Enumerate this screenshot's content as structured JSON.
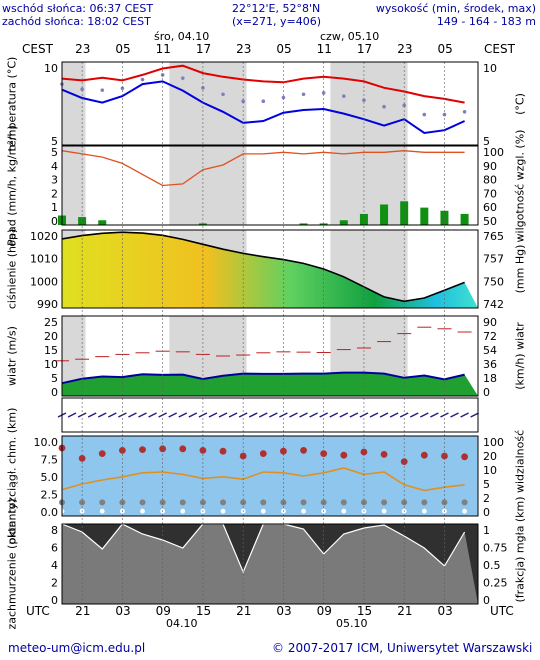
{
  "header": {
    "sunrise": "wschód słońca: 06:37 CEST",
    "sunset": "zachód słońca: 18:02 CEST",
    "coords": "22°12'E, 52°8'N",
    "grid": "(x=271,  y=406)",
    "height_label": "wysokość (min, środek, max)",
    "height_values": "149 - 164 - 183 m"
  },
  "top_axis": {
    "tz_left": "CEST",
    "tz_right": "CEST",
    "hours": [
      "23",
      "05",
      "11",
      "17",
      "23",
      "05",
      "11",
      "17",
      "23",
      "05"
    ],
    "day1": "śro, 04.10",
    "day2": "czw, 05.10"
  },
  "bottom_axis": {
    "tz_left": "UTC",
    "tz_right": "UTC",
    "hours": [
      "21",
      "03",
      "09",
      "15",
      "21",
      "03",
      "09",
      "15",
      "21",
      "03"
    ],
    "day1": "04.10",
    "day2": "05.10"
  },
  "footer": {
    "email": "meteo-um@icm.edu.pl",
    "copyright": "© 2007-2017 ICM, Uniwersytet Warszawski"
  },
  "colors": {
    "temp_line": "#e00000",
    "dew_line": "#0000e0",
    "humidity_line": "#e05020",
    "precip_bar": "#109010",
    "wind_line": "#0000a0",
    "pressure_line": "#000000",
    "night_shade": "#d8d8d8",
    "cloud_bg": "#303030"
  },
  "chart_data": [
    {
      "type": "line",
      "panel": "temperature",
      "ylabel": "temperatura (°C)",
      "ylabel_right": "(°C)",
      "ticks": [
        "10",
        "5"
      ],
      "ticks_right": [
        "10",
        "5"
      ],
      "ylim": [
        3,
        12
      ],
      "x_hours_utc": [
        0,
        3,
        6,
        9,
        12,
        15,
        18,
        21,
        24,
        27,
        30,
        33,
        36,
        39,
        42,
        45,
        48,
        51,
        54,
        57,
        60
      ],
      "series": [
        {
          "values": [
            10.2,
            10.0,
            10.3,
            10.0,
            10.6,
            11.3,
            11.6,
            10.8,
            10.4,
            10.1,
            9.9,
            9.8,
            10.2,
            10.4,
            10.2,
            9.9,
            9.2,
            8.8,
            8.3,
            8.0,
            7.6
          ]
        },
        {
          "values": [
            9.0,
            8.1,
            7.6,
            8.3,
            9.6,
            9.9,
            8.9,
            7.6,
            6.6,
            5.4,
            5.6,
            6.5,
            6.8,
            6.9,
            6.4,
            5.8,
            5.1,
            5.8,
            4.3,
            4.6,
            5.6
          ]
        }
      ]
    },
    {
      "type": "bar",
      "panel": "precipitation_humidity",
      "ylabel": "opad (mm/h, kg/m²/h)",
      "ylabel_right": "wilgotność wzgl. (%)",
      "ticks": [
        "5",
        "4",
        "3",
        "2",
        "1",
        "0"
      ],
      "ticks_right": [
        "100",
        "90",
        "80",
        "70",
        "60",
        "50"
      ],
      "ylim": [
        0,
        5
      ],
      "ylim_right": [
        50,
        100
      ],
      "x_hours_utc": [
        0,
        3,
        6,
        9,
        12,
        15,
        18,
        21,
        24,
        27,
        30,
        33,
        36,
        39,
        42,
        45,
        48,
        51,
        54,
        57,
        60
      ],
      "series": [
        {
          "name_hidden": "precip",
          "values": [
            0.6,
            0.5,
            0.3,
            0.0,
            0.0,
            0.0,
            0.0,
            0.1,
            0.0,
            0.0,
            0.0,
            0.0,
            0.1,
            0.1,
            0.3,
            0.7,
            1.3,
            1.5,
            1.1,
            0.9,
            0.7
          ]
        },
        {
          "name_hidden": "humidity",
          "values": [
            97,
            95,
            93,
            89,
            82,
            75,
            76,
            85,
            88,
            95,
            95,
            96,
            95,
            96,
            95,
            96,
            96,
            97,
            96,
            96,
            96
          ]
        }
      ]
    },
    {
      "type": "area",
      "panel": "pressure",
      "ylabel": "ciśnienie (hPa)",
      "ylabel_right": "(mm Hg)",
      "ticks": [
        "1020",
        "1010",
        "1000",
        "990"
      ],
      "ticks_right": [
        "765",
        "757",
        "750",
        "742"
      ],
      "ylim": [
        985,
        1020
      ],
      "x_hours_utc": [
        0,
        3,
        6,
        9,
        12,
        15,
        18,
        21,
        24,
        27,
        30,
        33,
        36,
        39,
        42,
        45,
        48,
        51,
        54,
        57,
        60
      ],
      "values": [
        1016.0,
        1017.5,
        1018.5,
        1019.0,
        1018.6,
        1017.6,
        1015.8,
        1013.6,
        1011.4,
        1009.5,
        1008.0,
        1006.7,
        1005.0,
        1002.5,
        999.0,
        994.5,
        990.0,
        988.0,
        989.5,
        993.0,
        996.5
      ]
    },
    {
      "type": "line",
      "panel": "wind",
      "ylabel": "wiatr (m/s)",
      "ylabel_right": "(km/h) wiatr",
      "ticks": [
        "25",
        "20",
        "15",
        "10",
        "5",
        "0"
      ],
      "ticks_right": [
        "90",
        "72",
        "54",
        "36",
        "18",
        "0"
      ],
      "ylim": [
        0,
        25
      ],
      "x_hours_utc": [
        0,
        3,
        6,
        9,
        12,
        15,
        18,
        21,
        24,
        27,
        30,
        33,
        36,
        39,
        42,
        45,
        48,
        51,
        54,
        57,
        60
      ],
      "series": [
        {
          "values": [
            4.0,
            5.4,
            6.1,
            5.9,
            6.8,
            6.6,
            6.7,
            5.3,
            6.3,
            7.0,
            6.9,
            6.9,
            7.0,
            7.0,
            7.3,
            7.3,
            7.0,
            5.7,
            6.4,
            5.2,
            6.7
          ]
        },
        {
          "values": [
            11.0,
            11.5,
            12.3,
            13.0,
            13.5,
            14.0,
            13.8,
            13.0,
            12.5,
            12.8,
            13.5,
            13.8,
            13.7,
            13.6,
            14.5,
            15.0,
            17.0,
            19.5,
            21.5,
            21.0,
            20.0
          ]
        }
      ]
    },
    {
      "type": "scatter",
      "panel": "visibility_cloudbase",
      "ylabel": "pion. rozciągł. chm. (km)",
      "ylabel_right": "(km) widzialność",
      "ticks": [
        "10.0",
        "7.5",
        "5.0",
        "2.5",
        "0.0"
      ],
      "ticks_right": [
        "100",
        "20",
        "10",
        "5",
        "2",
        "0"
      ],
      "ylim": [
        0,
        10
      ],
      "x_hours_utc": [
        0,
        3,
        6,
        9,
        12,
        15,
        18,
        21,
        24,
        27,
        30,
        33,
        36,
        39,
        42,
        45,
        48,
        51,
        54,
        57,
        60
      ],
      "series": [
        {
          "values": [
            8.5,
            7.2,
            7.8,
            8.2,
            8.3,
            8.4,
            8.4,
            8.2,
            8.1,
            7.5,
            7.8,
            8.1,
            8.2,
            7.8,
            7.6,
            8.0,
            7.7,
            6.8,
            7.6,
            7.5,
            7.4
          ]
        },
        {
          "values": [
            3.3,
            4.0,
            4.5,
            4.9,
            5.4,
            5.5,
            5.2,
            4.7,
            4.9,
            4.6,
            5.5,
            5.4,
            5.0,
            5.4,
            6.0,
            5.2,
            5.5,
            3.9,
            3.2,
            3.6,
            3.9
          ]
        }
      ]
    },
    {
      "type": "area",
      "panel": "cloud_cover",
      "ylabel": "zachmurzenie (oktanty)",
      "ylabel_right": "(frakcja) mgła",
      "ticks": [
        "8",
        "6",
        "4",
        "2",
        "0"
      ],
      "ticks_right": [
        "1",
        "0.75",
        "0.5",
        "0.25",
        "0"
      ],
      "ylim": [
        0,
        8
      ],
      "x_hours_utc": [
        0,
        3,
        6,
        9,
        12,
        15,
        18,
        21,
        24,
        27,
        30,
        33,
        36,
        39,
        42,
        45,
        48,
        51,
        54,
        57,
        60
      ],
      "values": [
        8.0,
        7.2,
        5.5,
        8.0,
        7.0,
        6.4,
        5.6,
        8.0,
        8.0,
        3.2,
        8.0,
        8.0,
        7.5,
        5.0,
        7.0,
        7.6,
        7.9,
        6.8,
        5.6,
        3.8,
        7.2
      ]
    }
  ]
}
